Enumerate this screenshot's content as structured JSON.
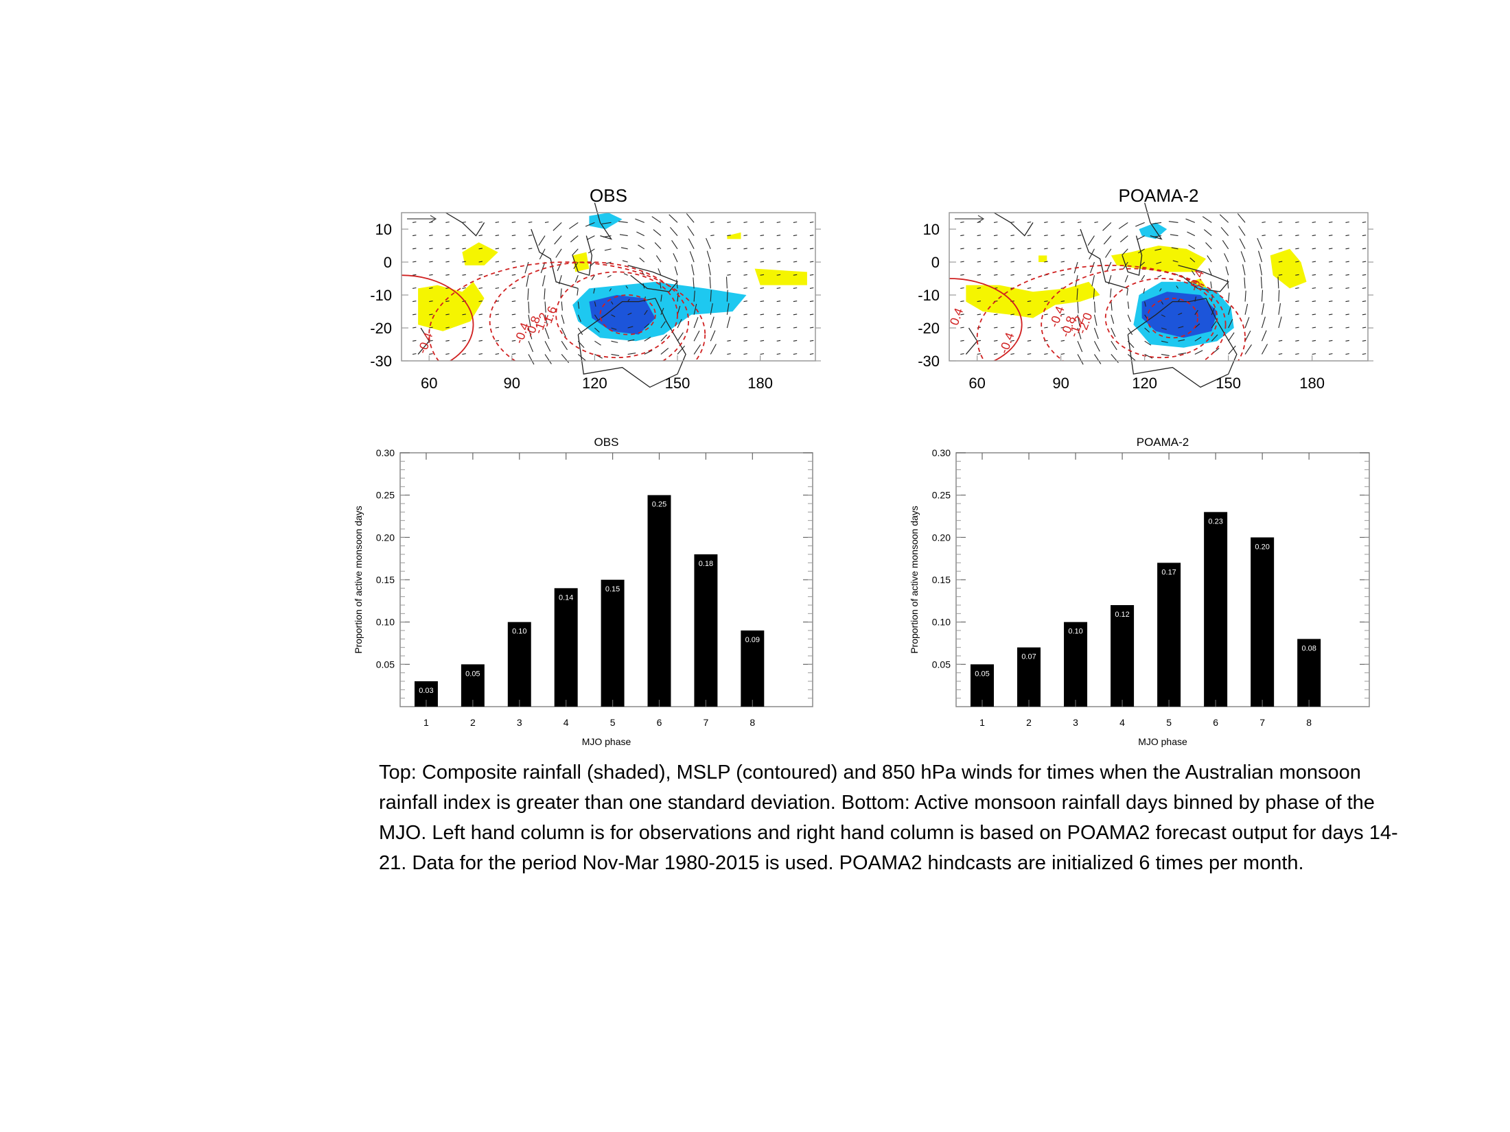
{
  "chart_data": [
    {
      "type": "map",
      "title": "OBS",
      "x_ticks": [
        "60",
        "90",
        "120",
        "150",
        "180"
      ],
      "y_ticks": [
        "10",
        "0",
        "-10",
        "-20",
        "-30"
      ],
      "xlim": [
        50,
        200
      ],
      "ylim": [
        -30,
        15
      ],
      "contour_labels": [
        "-0.4",
        "-0.4",
        "-0.8",
        "-1.2",
        "-1.6"
      ],
      "colors": {
        "positive_rain": "#f5f500",
        "negative_rain_light": "#1ec8f0",
        "negative_rain_dark": "#1c4fd8",
        "contour": "#d02020"
      }
    },
    {
      "type": "map",
      "title": "POAMA-2",
      "x_ticks": [
        "60",
        "90",
        "120",
        "150",
        "180"
      ],
      "y_ticks": [
        "10",
        "0",
        "-10",
        "-20",
        "-30"
      ],
      "xlim": [
        50,
        200
      ],
      "ylim": [
        -30,
        15
      ],
      "contour_labels": [
        "0.4",
        "-0.4",
        "-0.4",
        "-0.8",
        "-1.2",
        "-2.0",
        "-0.4"
      ],
      "colors": {
        "positive_rain": "#f5f500",
        "negative_rain_light": "#1ec8f0",
        "negative_rain_dark": "#1c4fd8",
        "contour": "#d02020"
      }
    },
    {
      "type": "bar",
      "title": "OBS",
      "categories": [
        "1",
        "2",
        "3",
        "4",
        "5",
        "6",
        "7",
        "8"
      ],
      "values": [
        0.03,
        0.05,
        0.1,
        0.14,
        0.15,
        0.25,
        0.18,
        0.09
      ],
      "value_labels": [
        "0.03",
        "0.05",
        "0.10",
        "0.14",
        "0.15",
        "0.25",
        "0.18",
        "0.09"
      ],
      "y_ticks": [
        "0.05",
        "0.10",
        "0.15",
        "0.20",
        "0.25",
        "0.30"
      ],
      "xlabel": "MJO phase",
      "ylabel": "Proportion of active monsoon days",
      "ylim": [
        0,
        0.3
      ],
      "bar_color": "#000000"
    },
    {
      "type": "bar",
      "title": "POAMA-2",
      "categories": [
        "1",
        "2",
        "3",
        "4",
        "5",
        "6",
        "7",
        "8"
      ],
      "values": [
        0.05,
        0.07,
        0.1,
        0.12,
        0.17,
        0.23,
        0.2,
        0.08
      ],
      "value_labels": [
        "0.05",
        "0.07",
        "0.10",
        "0.12",
        "0.17",
        "0.23",
        "0.20",
        "0.08"
      ],
      "y_ticks": [
        "0.05",
        "0.10",
        "0.15",
        "0.20",
        "0.25",
        "0.30"
      ],
      "xlabel": "MJO phase",
      "ylabel": "Proportion of active monsoon days",
      "ylim": [
        0,
        0.3
      ],
      "bar_color": "#000000"
    }
  ],
  "caption": "Top: Composite rainfall (shaded), MSLP (contoured) and 850 hPa winds for times when the Australian monsoon rainfall index is greater than one standard deviation.  Bottom:  Active monsoon rainfall days binned by phase of the MJO.  Left hand column is for observations and right hand column is based on POAMA2 forecast output for days 14-21. Data for the period  Nov-Mar 1980-2015 is used. POAMA2 hindcasts are initialized 6 times per month."
}
